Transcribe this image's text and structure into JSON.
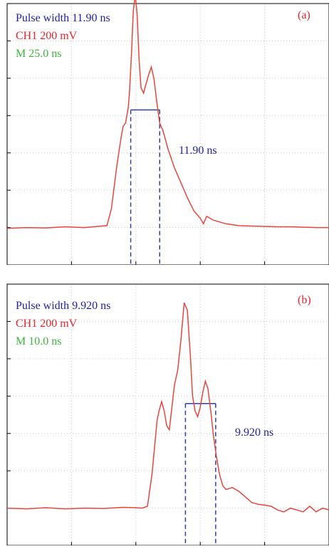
{
  "colors": {
    "trace": "#e8463c",
    "info_blue": "#1f1f9e",
    "channel_red": "#e8232a",
    "timebase_green": "#3cb43c",
    "grid": "#c8c8c8",
    "frame": "#000000",
    "marker": "#2f3f9a"
  },
  "chart_data": [
    {
      "type": "line",
      "panel_label": "(a)",
      "pulse_width_text": "Pulse width 11.90 ns",
      "channel_text": "CH1 200 mV",
      "timebase_text": "M 25.0 ns",
      "width_annotation": "11.90 ns",
      "grid": true,
      "x_divisions": 5,
      "y_divisions": 7,
      "marker_x": [
        1.92,
        2.37
      ],
      "marker_y": 4.15,
      "x": [
        0,
        0.3,
        0.6,
        0.9,
        1.2,
        1.4,
        1.55,
        1.62,
        1.7,
        1.76,
        1.8,
        1.84,
        1.88,
        1.9,
        1.93,
        1.96,
        1.99,
        2.02,
        2.05,
        2.08,
        2.12,
        2.15,
        2.2,
        2.24,
        2.28,
        2.33,
        2.37,
        2.42,
        2.5,
        2.6,
        2.7,
        2.8,
        2.9,
        3.0,
        3.05,
        3.1,
        3.2,
        3.3,
        3.4,
        3.6,
        3.8,
        4.0,
        4.2,
        4.4,
        4.6,
        4.8,
        5.0
      ],
      "y": [
        0.98,
        1.0,
        0.99,
        1.02,
        1.0,
        1.03,
        1.05,
        1.5,
        2.6,
        3.3,
        3.7,
        3.8,
        4.2,
        4.6,
        5.6,
        6.8,
        7.25,
        6.7,
        5.5,
        4.75,
        4.6,
        4.8,
        5.1,
        5.3,
        5.0,
        4.3,
        3.8,
        3.6,
        3.1,
        2.6,
        2.2,
        1.8,
        1.45,
        1.25,
        1.1,
        1.3,
        1.2,
        1.15,
        1.1,
        1.05,
        1.04,
        1.03,
        1.02,
        1.02,
        1.01,
        1.0,
        1.0
      ]
    },
    {
      "type": "line",
      "panel_label": "(b)",
      "pulse_width_text": "Pulse width 9.920 ns",
      "channel_text": "CH1 200 mV",
      "timebase_text": "M 10.0 ns",
      "width_annotation": "9.920 ns",
      "grid": true,
      "x_divisions": 5,
      "y_divisions": 7,
      "marker_x": [
        2.77,
        3.24
      ],
      "marker_y": 3.8,
      "x": [
        0,
        0.3,
        0.6,
        0.9,
        1.2,
        1.5,
        1.8,
        2.0,
        2.1,
        2.18,
        2.25,
        2.3,
        2.33,
        2.36,
        2.4,
        2.44,
        2.48,
        2.52,
        2.56,
        2.6,
        2.65,
        2.7,
        2.75,
        2.8,
        2.85,
        2.88,
        2.92,
        2.96,
        3.0,
        3.04,
        3.08,
        3.12,
        3.17,
        3.2,
        3.25,
        3.3,
        3.35,
        3.4,
        3.5,
        3.6,
        3.7,
        3.8,
        3.9,
        4.0,
        4.1,
        4.2,
        4.3,
        4.4,
        4.5,
        4.6,
        4.7,
        4.8,
        4.9,
        5.0
      ],
      "y": [
        1.0,
        0.98,
        1.01,
        0.98,
        1.0,
        0.99,
        1.02,
        1.01,
        1.0,
        1.05,
        1.9,
        2.8,
        3.35,
        3.6,
        3.85,
        3.6,
        3.2,
        3.1,
        3.7,
        4.3,
        4.7,
        5.5,
        6.5,
        6.3,
        5.0,
        4.0,
        3.6,
        3.45,
        3.7,
        4.1,
        4.4,
        4.2,
        3.5,
        3.0,
        2.4,
        1.9,
        1.6,
        1.5,
        1.55,
        1.45,
        1.3,
        1.15,
        1.1,
        1.08,
        1.05,
        0.95,
        0.9,
        1.0,
        0.95,
        0.9,
        1.05,
        0.9,
        1.0,
        0.95
      ]
    }
  ]
}
